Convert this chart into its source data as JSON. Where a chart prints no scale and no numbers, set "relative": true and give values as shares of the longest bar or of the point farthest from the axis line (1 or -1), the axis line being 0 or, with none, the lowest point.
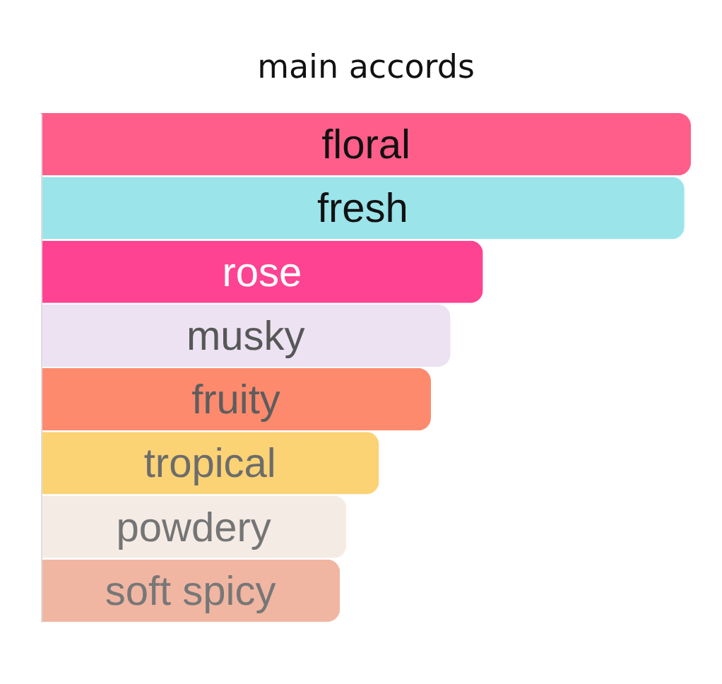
{
  "chart_data": {
    "type": "bar",
    "orientation": "horizontal",
    "relative": true,
    "title": "main accords",
    "categories": [
      "floral",
      "fresh",
      "rose",
      "musky",
      "fruity",
      "tropical",
      "powdery",
      "soft spicy"
    ],
    "values": [
      1,
      0.99,
      0.68,
      0.63,
      0.6,
      0.52,
      0.47,
      0.46
    ],
    "colors": [
      "#ff5e8a",
      "#9ae4ea",
      "#fe4392",
      "#ece2f2",
      "#fe8a6e",
      "#fbd274",
      "#f5ebe5",
      "#f0b6a2"
    ]
  }
}
